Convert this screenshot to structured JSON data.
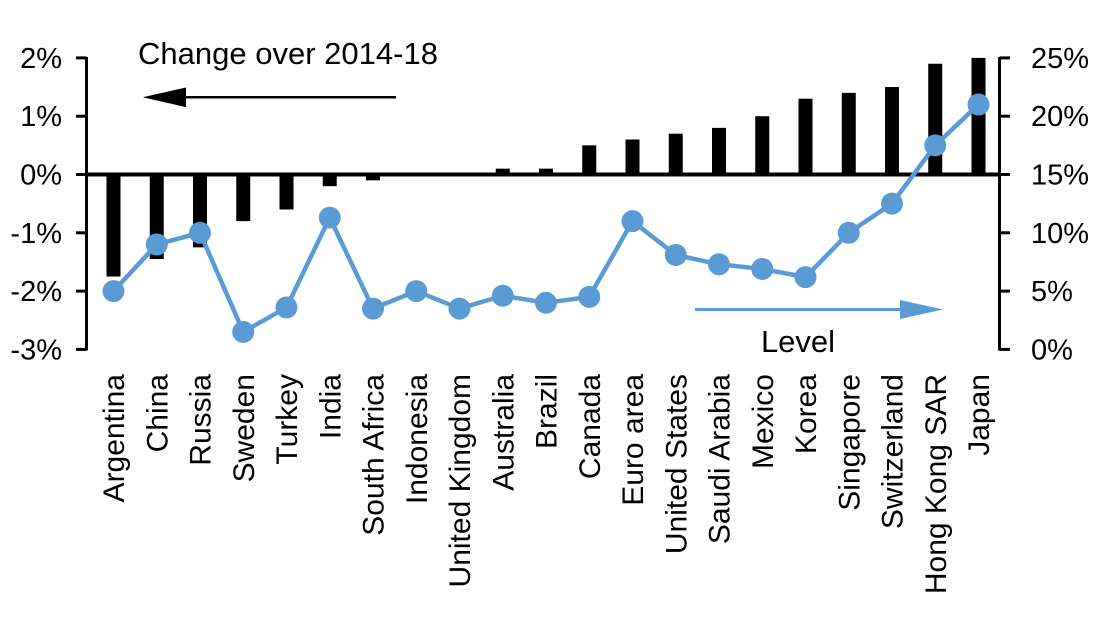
{
  "chart_data": {
    "type": "combo",
    "categories": [
      "Argentina",
      "China",
      "Russia",
      "Sweden",
      "Turkey",
      "India",
      "South Africa",
      "Indonesia",
      "United Kingdom",
      "Australia",
      "Brazil",
      "Canada",
      "Euro area",
      "United States",
      "Saudi Arabia",
      "Mexico",
      "Korea",
      "Singapore",
      "Switzerland",
      "Hong Kong SAR",
      "Japan"
    ],
    "series": [
      {
        "name": "Change over 2014-18",
        "type": "bar",
        "axis": "left",
        "color": "#000000",
        "values": [
          -1.75,
          -1.45,
          -1.25,
          -0.8,
          -0.6,
          -0.2,
          -0.1,
          0,
          0,
          0.1,
          0.1,
          0.5,
          0.6,
          0.7,
          0.8,
          1.0,
          1.3,
          1.4,
          1.5,
          1.9,
          2.0
        ]
      },
      {
        "name": "Level",
        "type": "line",
        "axis": "right",
        "color": "#5B9BD5",
        "values": [
          5.0,
          9.0,
          10.0,
          1.5,
          3.6,
          11.3,
          3.5,
          5.0,
          3.5,
          4.6,
          4.0,
          4.5,
          11.0,
          8.1,
          7.3,
          6.9,
          6.2,
          10.0,
          12.5,
          17.5,
          21.0
        ]
      }
    ],
    "left_axis": {
      "ticks": [
        "2%",
        "1%",
        "0%",
        "-1%",
        "-2%",
        "-3%"
      ],
      "values": [
        2,
        1,
        0,
        -1,
        -2,
        -3
      ],
      "range": [
        -3,
        2
      ]
    },
    "right_axis": {
      "ticks": [
        "25%",
        "20%",
        "15%",
        "10%",
        "5%",
        "0%"
      ],
      "values": [
        25,
        20,
        15,
        10,
        5,
        0
      ],
      "range": [
        0,
        25
      ]
    },
    "annotations": [
      {
        "text": "Change over 2014-18",
        "arrow": "left",
        "color": "#000000"
      },
      {
        "text": "Level",
        "arrow": "right",
        "color": "#5B9BD5"
      }
    ],
    "grid": false,
    "title": "",
    "xlabel": "",
    "ylabel": ""
  },
  "colors": {
    "bar": "#000000",
    "line": "#5B9BD5",
    "axis": "#000000",
    "background": "#FFFFFF"
  }
}
